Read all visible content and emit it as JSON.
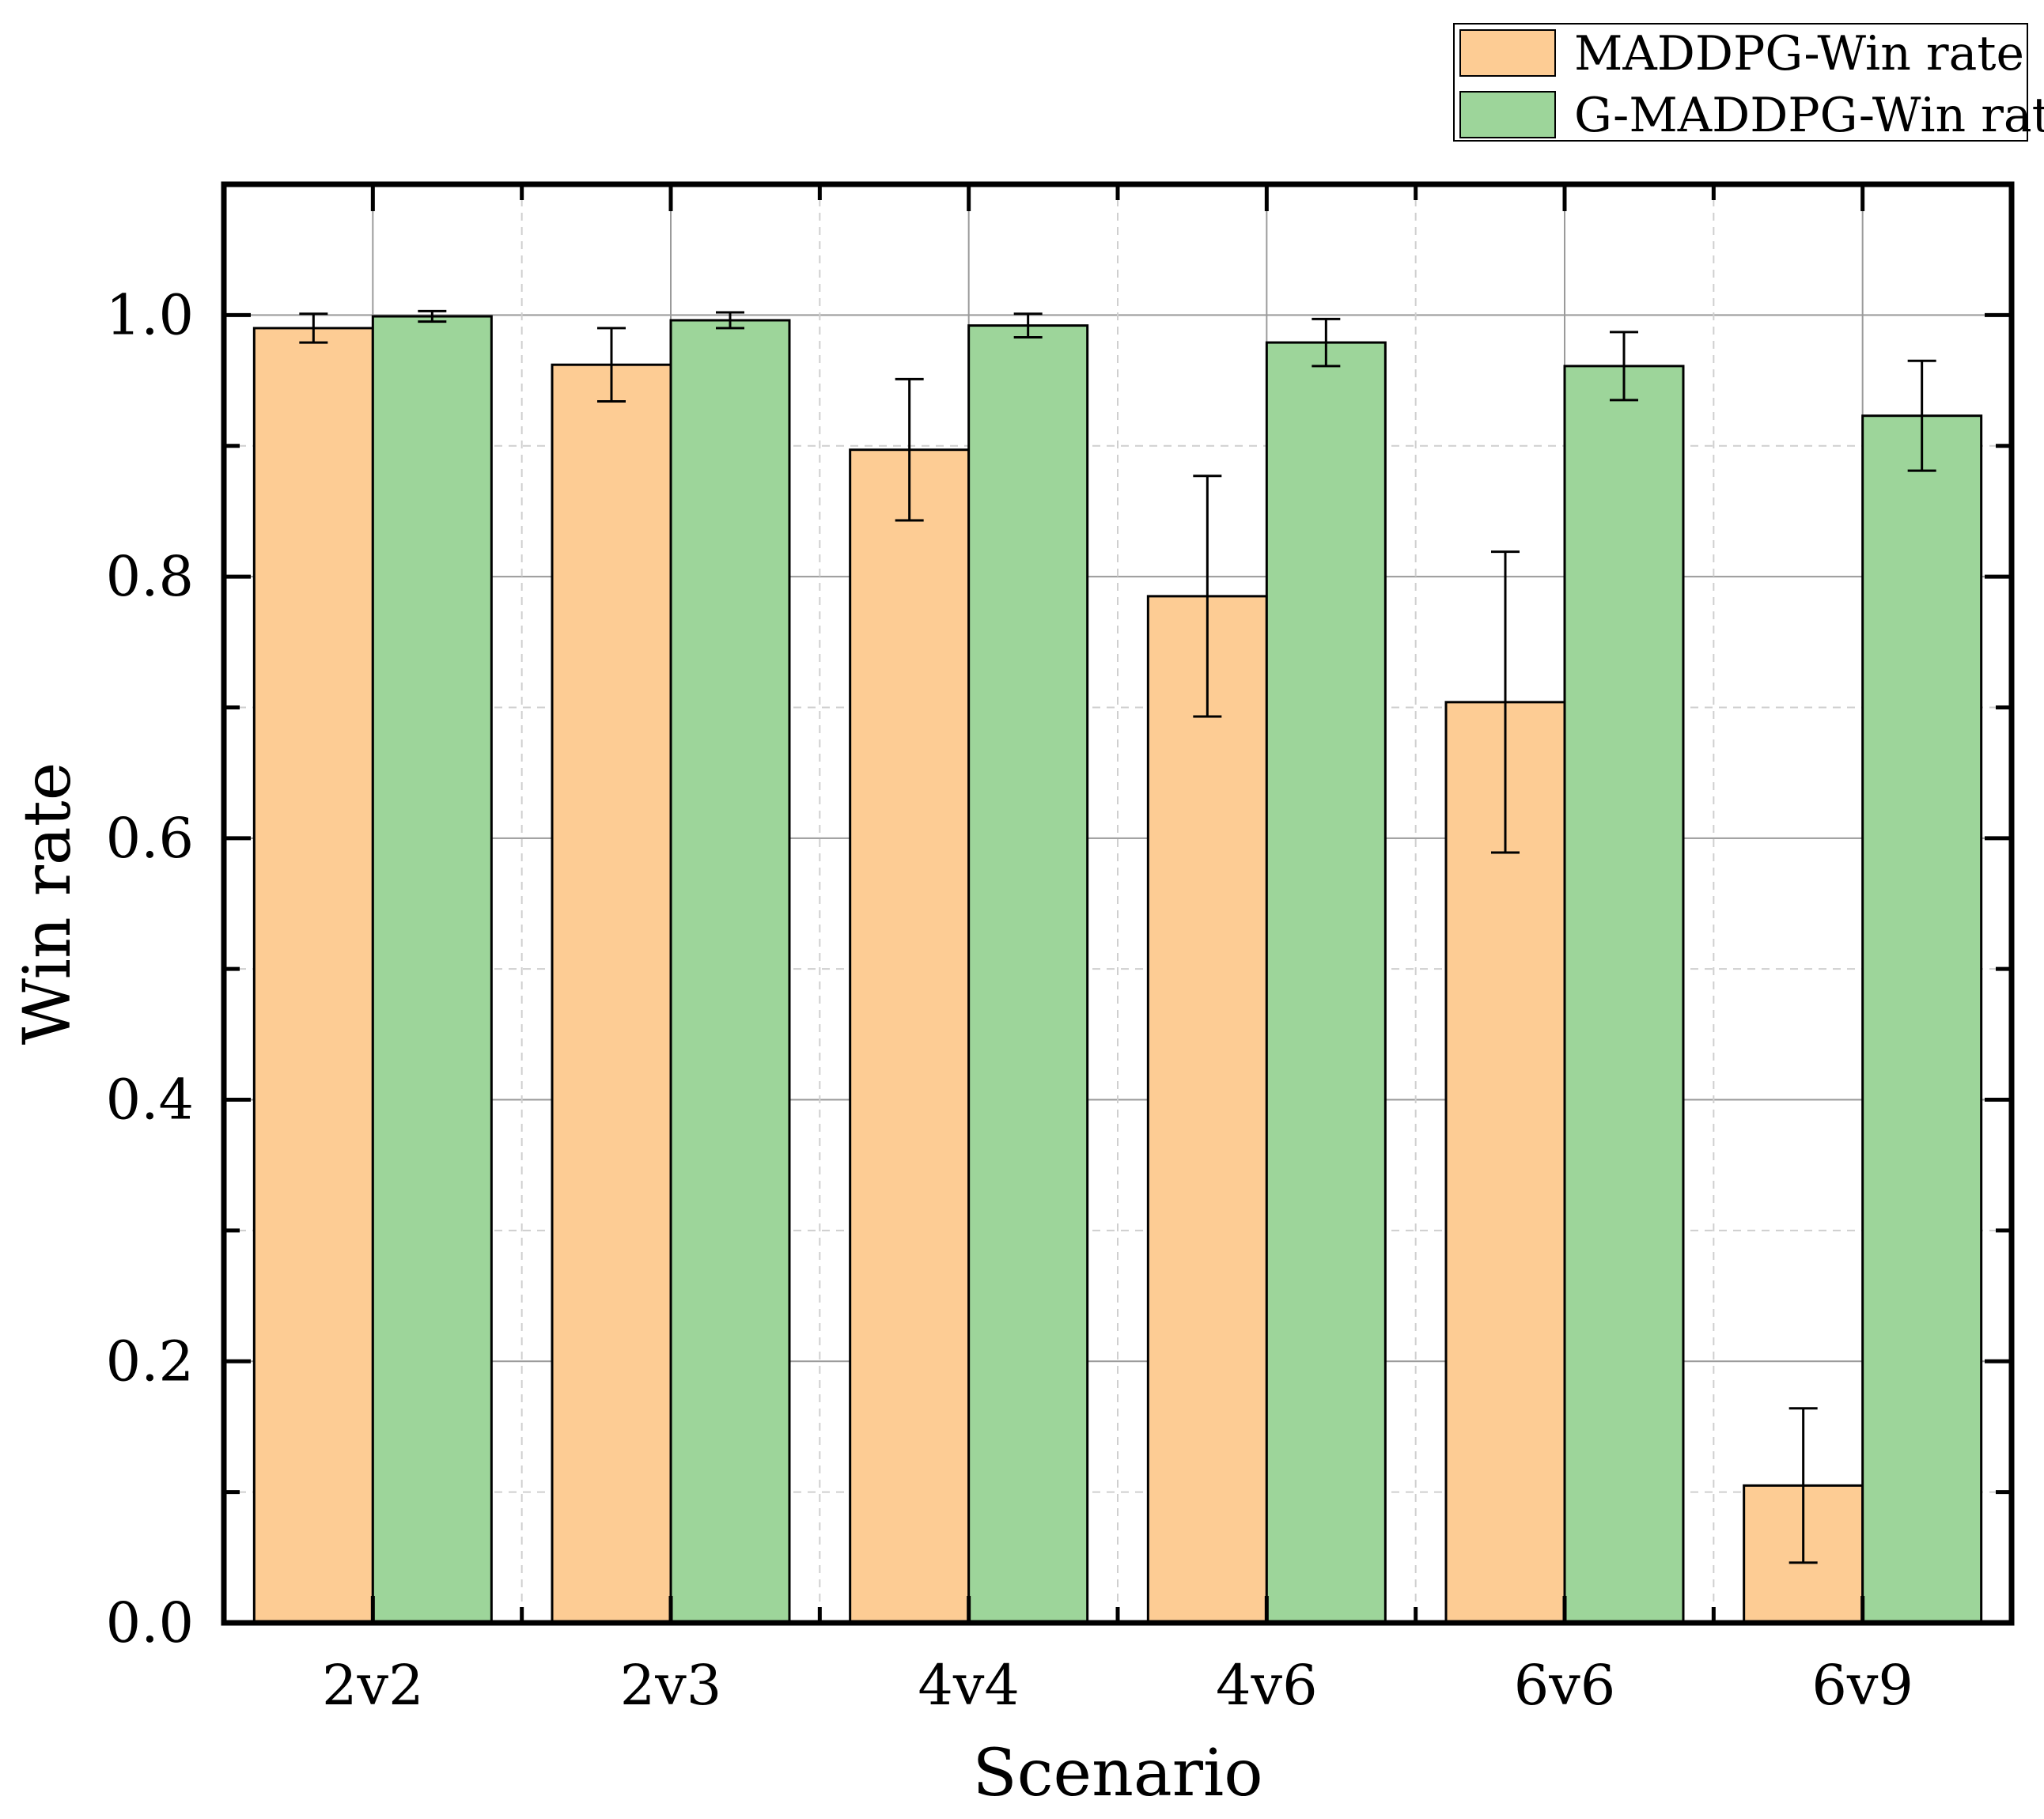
{
  "chart_data": {
    "type": "bar",
    "xlabel": "Scenario",
    "ylabel": "Win rate",
    "ylim": [
      0,
      1.1
    ],
    "yticks": [
      "0.0",
      "0.2",
      "0.4",
      "0.6",
      "0.8",
      "1.0"
    ],
    "grid": true,
    "legend_position": "top-right",
    "categories": [
      "2v2",
      "2v3",
      "4v4",
      "4v6",
      "6v6",
      "6v9"
    ],
    "series": [
      {
        "name": "MADDPG-Win rate",
        "color": "#FDCC94",
        "values": [
          0.99,
          0.962,
          0.897,
          0.785,
          0.704,
          0.105
        ],
        "errors": [
          0.011,
          0.028,
          0.054,
          0.092,
          0.115,
          0.059
        ]
      },
      {
        "name": "G-MADDPG-Win rate",
        "color": "#9DD59A",
        "values": [
          0.999,
          0.996,
          0.992,
          0.979,
          0.961,
          0.923
        ],
        "errors": [
          0.004,
          0.006,
          0.009,
          0.018,
          0.026,
          0.042
        ]
      }
    ]
  }
}
